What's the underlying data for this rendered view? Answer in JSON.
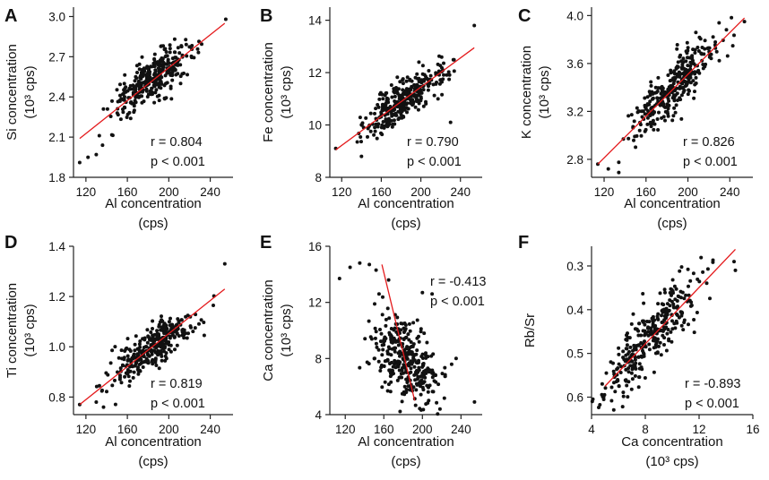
{
  "colors": {
    "points": "#111111",
    "fit_line": "#e41a1c",
    "axis": "#222222"
  },
  "chart_data": [
    {
      "panel": "A",
      "type": "scatter",
      "ylabel": [
        "Si concentration",
        "(10³ cps)"
      ],
      "xlabel": [
        "Al  concentration",
        "(cps)"
      ],
      "xlim": [
        108,
        262
      ],
      "ylim": [
        1.8,
        3.07
      ],
      "xticks": [
        120,
        160,
        200,
        240
      ],
      "xtick_labels": [
        "120",
        "160",
        "200",
        "240"
      ],
      "yticks": [
        1.8,
        2.1,
        2.4,
        2.7,
        3.0
      ],
      "ytick_labels": [
        "1.8",
        "2.1",
        "2.4",
        "2.7",
        "3.0"
      ],
      "fit": {
        "x": [
          114,
          254
        ],
        "y": [
          2.09,
          2.95
        ]
      },
      "stats": {
        "r": "r = 0.804",
        "p": "p < 0.001"
      },
      "n_points": 330,
      "points_summary": {
        "x_center": 185,
        "x_sd": 20,
        "y_center": 2.54,
        "y_sd": 0.13,
        "r": 0.8
      },
      "outliers": [
        [
          114,
          1.91
        ],
        [
          122,
          1.95
        ],
        [
          130,
          1.97
        ],
        [
          136,
          2.04
        ],
        [
          255,
          2.98
        ]
      ]
    },
    {
      "panel": "B",
      "type": "scatter",
      "ylabel": [
        "Fe concentration",
        "(10³ cps)"
      ],
      "xlabel": [
        "Al  concentration",
        "(cps)"
      ],
      "xlim": [
        108,
        262
      ],
      "ylim": [
        8,
        14.5
      ],
      "xticks": [
        120,
        160,
        200,
        240
      ],
      "xtick_labels": [
        "120",
        "160",
        "200",
        "240"
      ],
      "yticks": [
        8,
        10,
        12,
        14
      ],
      "ytick_labels": [
        "8",
        "10",
        "12",
        "14"
      ],
      "fit": {
        "x": [
          114,
          254
        ],
        "y": [
          9.05,
          12.95
        ]
      },
      "stats": {
        "r": "r = 0.790",
        "p": "p < 0.001"
      },
      "n_points": 330,
      "points_summary": {
        "x_center": 185,
        "x_sd": 20,
        "y_center": 11.0,
        "y_sd": 0.65,
        "r": 0.79
      },
      "outliers": [
        [
          114,
          9.1
        ],
        [
          140,
          8.8
        ],
        [
          230,
          10.1
        ],
        [
          254,
          13.8
        ]
      ]
    },
    {
      "panel": "C",
      "type": "scatter",
      "ylabel": [
        "K concentration",
        "(10³ cps)"
      ],
      "xlabel": [
        "Al  concentration",
        "(cps)"
      ],
      "xlim": [
        108,
        262
      ],
      "ylim": [
        2.65,
        4.07
      ],
      "xticks": [
        120,
        160,
        200,
        240
      ],
      "xtick_labels": [
        "120",
        "160",
        "200",
        "240"
      ],
      "yticks": [
        2.8,
        3.2,
        3.6,
        4.0
      ],
      "ytick_labels": [
        "2.8",
        "3.2",
        "3.6",
        "4.0"
      ],
      "fit": {
        "x": [
          114,
          254
        ],
        "y": [
          2.76,
          3.98
        ]
      },
      "stats": {
        "r": "r = 0.826",
        "p": "p < 0.001"
      },
      "n_points": 330,
      "points_summary": {
        "x_center": 185,
        "x_sd": 20,
        "y_center": 3.38,
        "y_sd": 0.2,
        "r": 0.83
      },
      "outliers": [
        [
          114,
          2.76
        ],
        [
          124,
          2.72
        ],
        [
          134,
          2.69
        ],
        [
          254,
          3.95
        ]
      ]
    },
    {
      "panel": "D",
      "type": "scatter",
      "ylabel": [
        "Ti  concentration",
        "(10³ cps)"
      ],
      "xlabel": [
        "Al  concentration",
        "(cps)"
      ],
      "xlim": [
        108,
        262
      ],
      "ylim": [
        0.73,
        1.4
      ],
      "xticks": [
        120,
        160,
        200,
        240
      ],
      "xtick_labels": [
        "120",
        "160",
        "200",
        "240"
      ],
      "yticks": [
        0.8,
        1.0,
        1.2,
        1.4
      ],
      "ytick_labels": [
        "0.8",
        "1.0",
        "1.2",
        "1.4"
      ],
      "fit": {
        "x": [
          114,
          254
        ],
        "y": [
          0.77,
          1.23
        ]
      },
      "stats": {
        "r": "r = 0.819",
        "p": "p < 0.001"
      },
      "n_points": 330,
      "points_summary": {
        "x_center": 185,
        "x_sd": 20,
        "y_center": 1.0,
        "y_sd": 0.07,
        "r": 0.82
      },
      "outliers": [
        [
          114,
          0.77
        ],
        [
          130,
          0.78
        ],
        [
          137,
          0.76
        ],
        [
          254,
          1.33
        ]
      ]
    },
    {
      "panel": "E",
      "type": "scatter",
      "ylabel": [
        "Ca  concentration",
        "(10³ cps)"
      ],
      "xlabel": [
        "Al  concentration",
        "(cps)"
      ],
      "xlim": [
        104,
        262
      ],
      "ylim": [
        4,
        16
      ],
      "xticks": [
        120,
        160,
        200,
        240
      ],
      "xtick_labels": [
        "120",
        "160",
        "200",
        "240"
      ],
      "yticks": [
        4,
        8,
        12,
        16
      ],
      "ytick_labels": [
        "4",
        "8",
        "12",
        "16"
      ],
      "fit": {
        "x": [
          158,
          192
        ],
        "y": [
          14.7,
          5.0
        ]
      },
      "stats": {
        "r": "r = -0.413",
        "p": "p < 0.001"
      },
      "n_points": 330,
      "points_summary": {
        "x_center": 183,
        "x_sd": 18,
        "y_center": 7.8,
        "y_sd": 1.6,
        "r": -0.41
      },
      "outliers": [
        [
          114,
          13.7
        ],
        [
          125,
          14.5
        ],
        [
          135,
          14.8
        ],
        [
          145,
          14.7
        ],
        [
          152,
          14.3
        ],
        [
          155,
          12.6
        ],
        [
          165,
          13.6
        ],
        [
          200,
          12.7
        ],
        [
          210,
          12.6
        ],
        [
          235,
          8.0
        ],
        [
          254,
          4.9
        ]
      ]
    },
    {
      "panel": "F",
      "type": "scatter",
      "ylabel": [
        "Rb/Sr"
      ],
      "xlabel": [
        "Ca  concentration",
        "(10³ cps)"
      ],
      "xlim": [
        4,
        16
      ],
      "ylim": [
        0.64,
        0.255
      ],
      "y_inverted": true,
      "xticks": [
        4,
        8,
        12,
        16
      ],
      "xtick_labels": [
        "4",
        "8",
        "12",
        "16"
      ],
      "yticks": [
        0.3,
        0.4,
        0.5,
        0.6
      ],
      "ytick_labels": [
        "0.3",
        "0.4",
        "0.5",
        "0.6"
      ],
      "fit": {
        "x": [
          5.0,
          14.7
        ],
        "y": [
          0.575,
          0.262
        ]
      },
      "stats": {
        "r": "r = -0.893",
        "p": "p < 0.001"
      },
      "n_points": 330,
      "points_summary": {
        "x_center": 8.2,
        "x_sd": 2.0,
        "y_center": 0.47,
        "y_sd": 0.075,
        "r": -0.89
      },
      "outliers": [
        [
          4.9,
          0.6
        ],
        [
          14.6,
          0.29
        ],
        [
          14.7,
          0.31
        ]
      ]
    }
  ]
}
